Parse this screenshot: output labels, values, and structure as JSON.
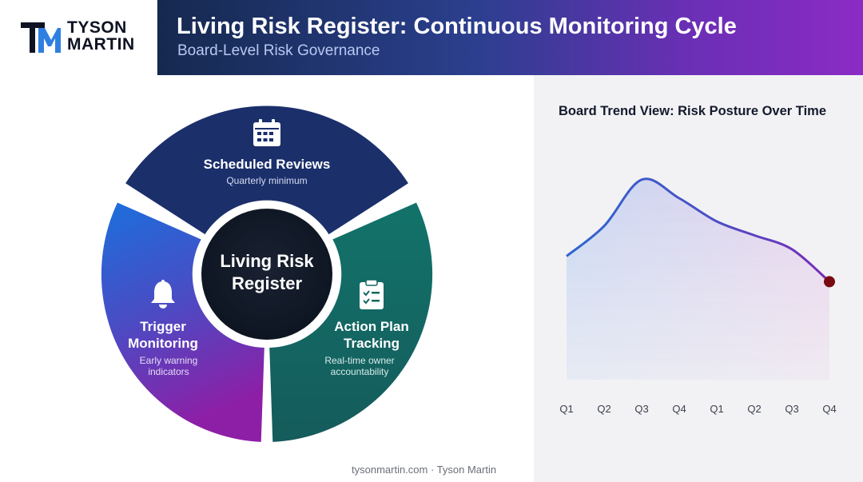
{
  "brand": {
    "line1": "TYSON",
    "line2": "MARTIN"
  },
  "header": {
    "title": "Living Risk Register: Continuous Monitoring Cycle",
    "subtitle": "Board-Level Risk Governance"
  },
  "cycle": {
    "center": {
      "line1": "Living Risk",
      "line2": "Register"
    },
    "segments": [
      {
        "id": "scheduled",
        "title": "Scheduled Reviews",
        "desc": "Quarterly minimum",
        "icon": "calendar-icon",
        "color": "#1b2f6b"
      },
      {
        "id": "action",
        "title_line1": "Action Plan",
        "title_line2": "Tracking",
        "desc_line1": "Real-time owner",
        "desc_line2": "accountability",
        "icon": "clipboard-check-icon",
        "color": "#136760"
      },
      {
        "id": "trigger",
        "title_line1": "Trigger",
        "title_line2": "Monitoring",
        "desc_line1": "Early warning",
        "desc_line2": "indicators",
        "icon": "bell-icon",
        "color_top": "#1e6ad2",
        "color_bottom": "#8a22a8"
      }
    ]
  },
  "chart_data": {
    "type": "line",
    "title": "Board Trend View: Risk Posture Over Time",
    "categories": [
      "Q1",
      "Q2",
      "Q3",
      "Q4",
      "Q1",
      "Q2",
      "Q3",
      "Q4"
    ],
    "values": [
      0.55,
      0.68,
      0.88,
      0.8,
      0.7,
      0.64,
      0.58,
      0.44
    ],
    "ylim": [
      0,
      1
    ],
    "grid": false,
    "colors": {
      "start": "#2f66d0",
      "end": "#7a2bb8",
      "endpoint": "#7a0a12"
    }
  },
  "footer": {
    "text": "tysonmartin.com · Tyson Martin"
  }
}
